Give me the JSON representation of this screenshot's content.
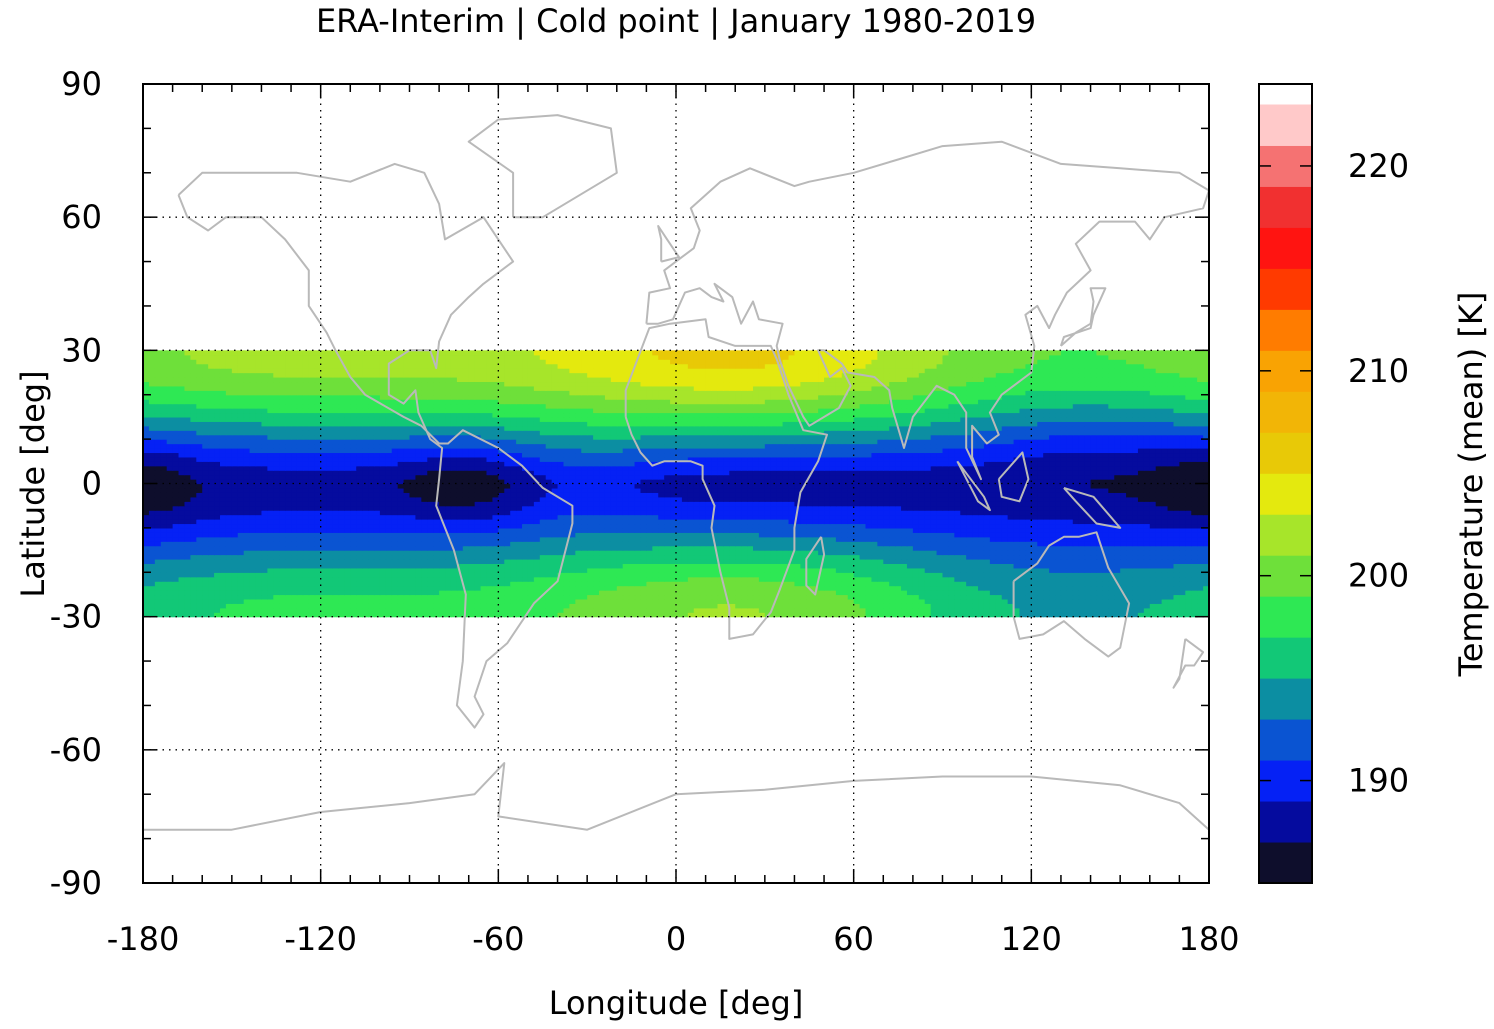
{
  "chart_data": {
    "type": "heatmap",
    "title": "ERA-Interim | Cold point | January 1980-2019",
    "xlabel": "Longitude [deg]",
    "ylabel": "Latitude [deg]",
    "colorbar_label": "Temperature (mean) [K]",
    "xlim": [
      -180,
      180
    ],
    "ylim": [
      -90,
      90
    ],
    "xticks": [
      -180,
      -120,
      -60,
      0,
      60,
      120,
      180
    ],
    "yticks": [
      90,
      60,
      30,
      0,
      -30,
      -60,
      -90
    ],
    "x_tick_labels": [
      "-180",
      "-120",
      "-60",
      "0",
      "60",
      "120",
      "180"
    ],
    "y_tick_labels": [
      "90",
      "60",
      "30",
      "0",
      "-30",
      "-60",
      "-90"
    ],
    "data_lat_range": [
      -30,
      30
    ],
    "grid": true,
    "colorbar": {
      "range": [
        185,
        224
      ],
      "step": 2,
      "ticks": [
        190,
        200,
        210,
        220
      ],
      "tick_labels": [
        "190",
        "200",
        "210",
        "220"
      ],
      "colors": [
        "#0e0e2c",
        "#050b9e",
        "#0521f5",
        "#0a54d2",
        "#0c8ea2",
        "#12c877",
        "#2ee854",
        "#6ee03a",
        "#a7e52a",
        "#e4e90e",
        "#e8c907",
        "#f2b506",
        "#f9a303",
        "#ff7c00",
        "#ff3a00",
        "#ff1411",
        "#f13030",
        "#f57272",
        "#ffc9c9"
      ]
    },
    "field_description": {
      "centers": [
        {
          "lon": -180,
          "lat": 0,
          "value": 186
        },
        {
          "lon": -72,
          "lat": 0,
          "value": 187
        },
        {
          "lon": 140,
          "lat": 10,
          "value": 187.5
        },
        {
          "lon": 180,
          "lat": 0,
          "value": 186
        }
      ]
    }
  }
}
